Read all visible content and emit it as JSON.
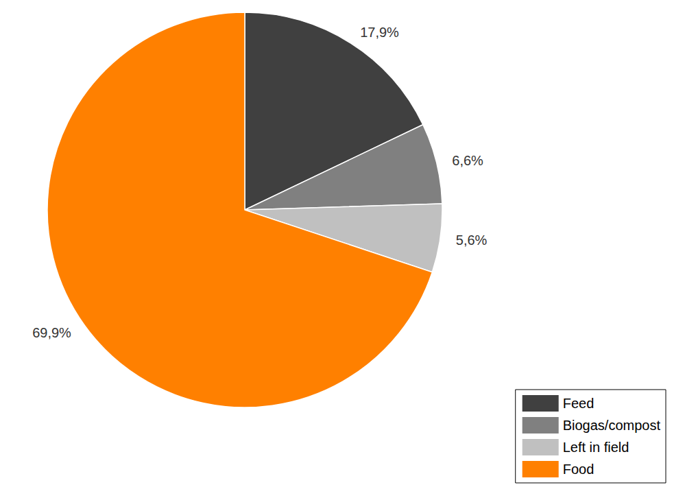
{
  "chart_data": {
    "type": "pie",
    "categories": [
      "Feed",
      "Biogas/compost",
      "Left in field",
      "Food"
    ],
    "values": [
      17.9,
      6.6,
      5.6,
      69.9
    ],
    "value_labels": [
      "17,9%",
      "6,6%",
      "5,6%",
      "69,9%"
    ],
    "colors": [
      "#404040",
      "#808080",
      "#c0c0c0",
      "#ff8000"
    ],
    "data_labels": true,
    "legend": "bottom right"
  }
}
